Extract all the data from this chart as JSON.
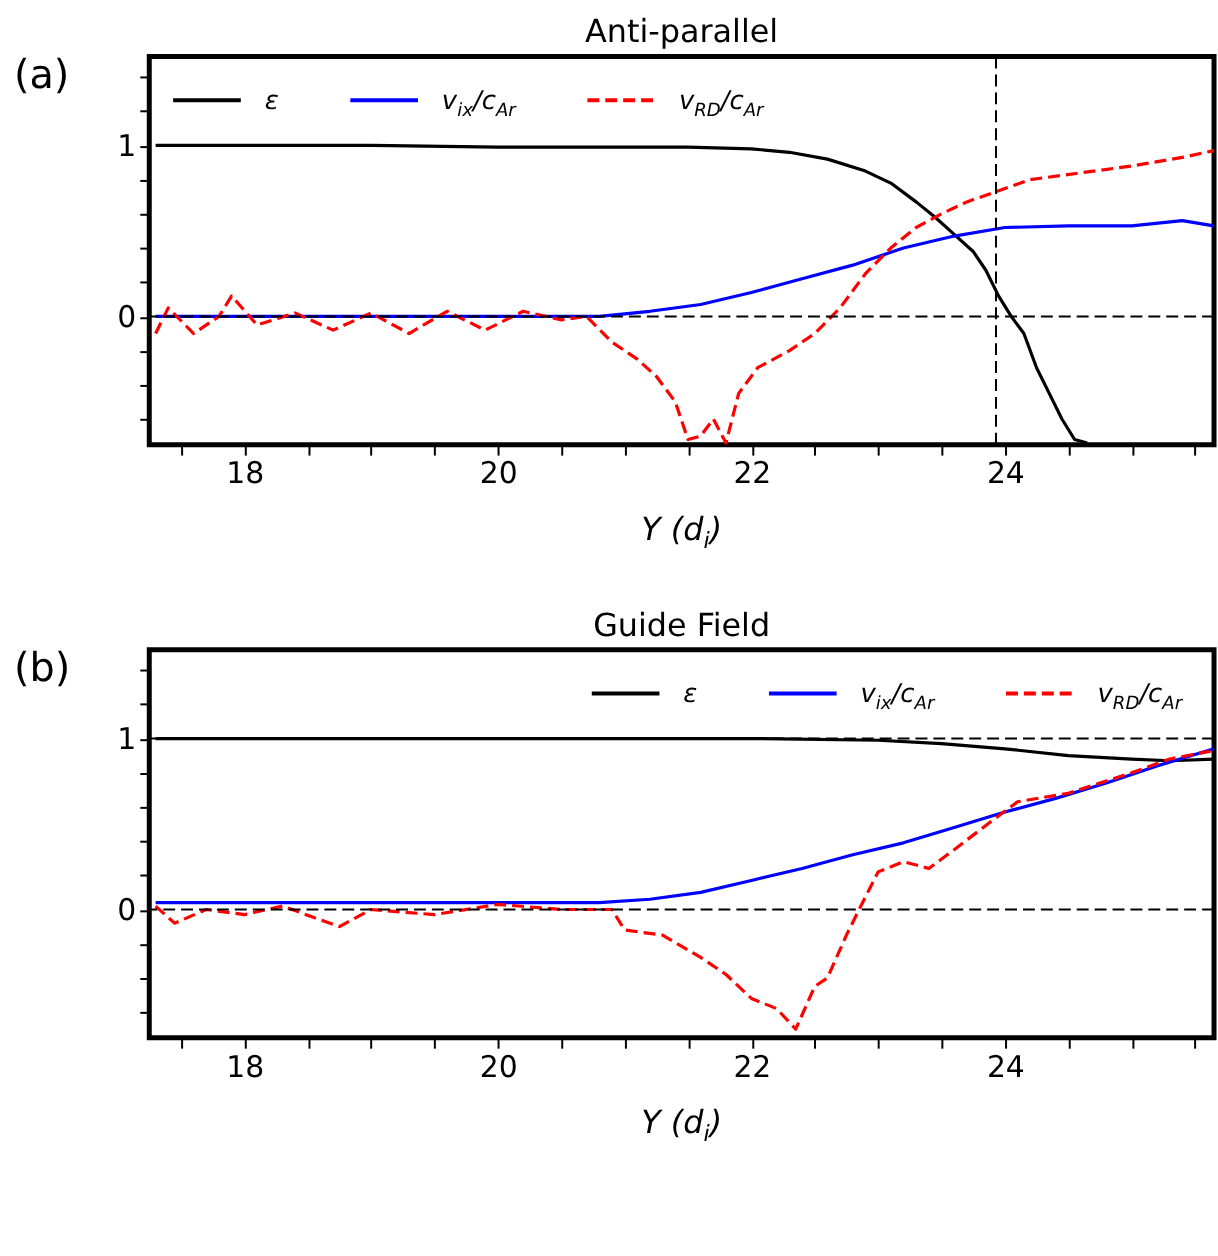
{
  "chart_data": [
    {
      "type": "line",
      "title": "Anti-parallel",
      "xlabel": "Y (d$_{i}$)",
      "annotations": [
        "(a)"
      ],
      "legend": "top left",
      "grid": false,
      "xlim": [
        17.25,
        25.65
      ],
      "ylim": [
        -0.75,
        1.52
      ],
      "xticks": [
        {
          "value": 17.5,
          "label": null
        },
        18,
        {
          "value": 18.5,
          "label": null
        },
        {
          "value": 19,
          "label": null
        },
        {
          "value": 19.5,
          "label": null
        },
        20,
        {
          "value": 20.5,
          "label": null
        },
        {
          "value": 21,
          "label": null
        },
        {
          "value": 21.5,
          "label": null
        },
        22,
        {
          "value": 22.5,
          "label": null
        },
        {
          "value": 23,
          "label": null
        },
        {
          "value": 23.5,
          "label": null
        },
        24,
        {
          "value": 24.5,
          "label": null
        },
        {
          "value": 25,
          "label": null
        },
        {
          "value": 25.5,
          "label": null
        }
      ],
      "yticks": [
        {
          "value": -0.6,
          "label": null
        },
        {
          "value": -0.4,
          "label": null
        },
        {
          "value": -0.2,
          "label": null
        },
        0,
        {
          "value": 0.2,
          "label": null
        },
        {
          "value": 0.4,
          "label": null
        },
        {
          "value": 0.6,
          "label": null
        },
        {
          "value": 0.8,
          "label": null
        },
        1,
        {
          "value": 1.2,
          "label": null
        },
        {
          "value": 1.4,
          "label": null
        }
      ],
      "ref_lines": [
        {
          "axis": "y",
          "value": 0,
          "color": "#000000",
          "line_style": "dashed"
        },
        {
          "axis": "x",
          "value": 23.93,
          "color": "#000000",
          "line_style": "dashed"
        }
      ],
      "series": [
        {
          "name": "ε",
          "color": "#000000",
          "line_style": "solid",
          "x": [
            17.3,
            18,
            19,
            20,
            21,
            21.5,
            22,
            22.3,
            22.6,
            22.9,
            23.1,
            23.3,
            23.45,
            23.6,
            23.75,
            23.85,
            23.95,
            24.05,
            24.15,
            24.25,
            24.35,
            24.45,
            24.55,
            24.65
          ],
          "values": [
            1.0,
            1.0,
            1.0,
            0.99,
            0.99,
            0.99,
            0.98,
            0.96,
            0.92,
            0.85,
            0.78,
            0.67,
            0.58,
            0.48,
            0.38,
            0.27,
            0.12,
            0.0,
            -0.1,
            -0.3,
            -0.45,
            -0.6,
            -0.72,
            -0.74
          ]
        },
        {
          "name": "v$_{ix}$/c$_{Ar}$",
          "color": "#0000ff",
          "line_style": "solid",
          "x": [
            17.3,
            20,
            20.8,
            21.2,
            21.6,
            22,
            22.4,
            22.8,
            23.2,
            23.6,
            24,
            24.5,
            25,
            25.4,
            25.65
          ],
          "values": [
            0,
            0,
            0.0,
            0.03,
            0.07,
            0.14,
            0.22,
            0.3,
            0.4,
            0.47,
            0.52,
            0.53,
            0.53,
            0.56,
            0.53
          ]
        },
        {
          "name": "v$_{RD}$/c$_{Ar}$",
          "color": "#ff0000",
          "line_style": "dashed",
          "x": [
            17.3,
            17.4,
            17.6,
            17.8,
            17.9,
            18.1,
            18.4,
            18.7,
            19,
            19.3,
            19.6,
            19.9,
            20.2,
            20.5,
            20.7,
            20.9,
            21.1,
            21.25,
            21.4,
            21.5,
            21.6,
            21.7,
            21.8,
            21.9,
            22.05,
            22.3,
            22.5,
            22.7,
            22.9,
            23.1,
            23.3,
            23.5,
            23.7,
            23.93,
            24.2,
            24.6,
            25,
            25.4,
            25.65
          ],
          "values": [
            -0.1,
            0.05,
            -0.1,
            0.0,
            0.12,
            -0.05,
            0.02,
            -0.08,
            0.02,
            -0.1,
            0.03,
            -0.08,
            0.03,
            -0.02,
            0.0,
            -0.15,
            -0.25,
            -0.35,
            -0.5,
            -0.72,
            -0.7,
            -0.6,
            -0.74,
            -0.45,
            -0.3,
            -0.2,
            -0.1,
            0.05,
            0.25,
            0.4,
            0.52,
            0.6,
            0.67,
            0.73,
            0.8,
            0.84,
            0.88,
            0.93,
            0.97
          ]
        }
      ]
    },
    {
      "type": "line",
      "title": "Guide Field",
      "xlabel": "Y (d$_{i}$)",
      "annotations": [
        "(b)"
      ],
      "legend": "top right",
      "grid": false,
      "xlim": [
        17.25,
        25.65
      ],
      "ylim": [
        -0.75,
        1.52
      ],
      "xticks": [
        {
          "value": 17.5,
          "label": null
        },
        18,
        {
          "value": 18.5,
          "label": null
        },
        {
          "value": 19,
          "label": null
        },
        {
          "value": 19.5,
          "label": null
        },
        20,
        {
          "value": 20.5,
          "label": null
        },
        {
          "value": 21,
          "label": null
        },
        {
          "value": 21.5,
          "label": null
        },
        22,
        {
          "value": 22.5,
          "label": null
        },
        {
          "value": 23,
          "label": null
        },
        {
          "value": 23.5,
          "label": null
        },
        24,
        {
          "value": 24.5,
          "label": null
        },
        {
          "value": 25,
          "label": null
        },
        {
          "value": 25.5,
          "label": null
        }
      ],
      "yticks": [
        {
          "value": -0.6,
          "label": null
        },
        {
          "value": -0.4,
          "label": null
        },
        {
          "value": -0.2,
          "label": null
        },
        0,
        {
          "value": 0.2,
          "label": null
        },
        {
          "value": 0.4,
          "label": null
        },
        {
          "value": 0.6,
          "label": null
        },
        {
          "value": 0.8,
          "label": null
        },
        1,
        {
          "value": 1.2,
          "label": null
        },
        {
          "value": 1.4,
          "label": null
        }
      ],
      "ref_lines": [
        {
          "axis": "y",
          "value": 0,
          "color": "#000000",
          "line_style": "dashed"
        },
        {
          "axis": "y",
          "value": 1,
          "color": "#000000",
          "line_style": "dashed"
        }
      ],
      "series": [
        {
          "name": "ε",
          "color": "#000000",
          "line_style": "solid",
          "x": [
            17.3,
            22,
            23,
            23.5,
            24,
            24.5,
            25,
            25.3,
            25.65
          ],
          "values": [
            1.0,
            1.0,
            0.99,
            0.97,
            0.94,
            0.9,
            0.88,
            0.87,
            0.88
          ]
        },
        {
          "name": "v$_{ix}$/c$_{Ar}$",
          "color": "#0000ff",
          "line_style": "solid",
          "x": [
            17.3,
            20.8,
            21.2,
            21.6,
            22,
            22.4,
            22.8,
            23.2,
            23.6,
            24,
            24.4,
            24.8,
            25.2,
            25.65
          ],
          "values": [
            0.04,
            0.04,
            0.06,
            0.1,
            0.17,
            0.24,
            0.32,
            0.39,
            0.48,
            0.57,
            0.65,
            0.74,
            0.84,
            0.94
          ]
        },
        {
          "name": "v$_{RD}$/c$_{Ar}$",
          "color": "#ff0000",
          "line_style": "dashed",
          "x": [
            17.3,
            17.45,
            17.7,
            18,
            18.3,
            18.75,
            19,
            19.5,
            20,
            20.5,
            20.9,
            21.0,
            21.3,
            21.6,
            21.8,
            22.0,
            22.2,
            22.35,
            22.5,
            22.6,
            22.75,
            22.85,
            23.0,
            23.2,
            23.4,
            23.6,
            23.9,
            24.1,
            24.5,
            25,
            25.3,
            25.65
          ],
          "values": [
            0.02,
            -0.08,
            0.0,
            -0.03,
            0.02,
            -0.1,
            0.0,
            -0.03,
            0.03,
            0.0,
            0.0,
            -0.12,
            -0.15,
            -0.28,
            -0.38,
            -0.52,
            -0.58,
            -0.7,
            -0.45,
            -0.4,
            -0.15,
            0.0,
            0.22,
            0.28,
            0.24,
            0.35,
            0.52,
            0.63,
            0.68,
            0.8,
            0.88,
            0.93
          ]
        }
      ]
    }
  ]
}
